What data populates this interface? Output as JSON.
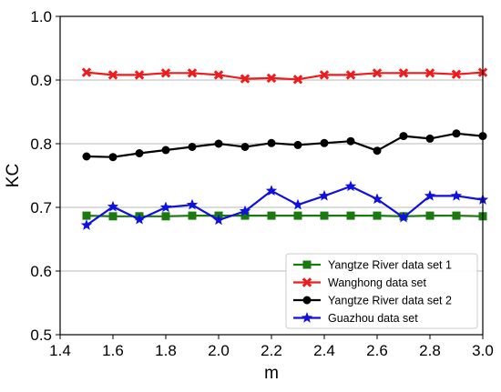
{
  "chart_data": {
    "type": "line",
    "xlabel": "m",
    "ylabel": "KC",
    "xlim": [
      1.4,
      3.0
    ],
    "ylim": [
      0.5,
      1.0
    ],
    "xticks": [
      "1.4",
      "1.6",
      "1.8",
      "2.0",
      "2.2",
      "2.4",
      "2.6",
      "2.8",
      "3.0"
    ],
    "yticks": [
      "0.5",
      "0.6",
      "0.7",
      "0.8",
      "0.9",
      "1.0"
    ],
    "grid": "horizontal",
    "legend_position": "bottom-right",
    "x": [
      1.5,
      1.6,
      1.7,
      1.8,
      1.9,
      2.0,
      2.1,
      2.2,
      2.3,
      2.4,
      2.5,
      2.6,
      2.7,
      2.8,
      2.9,
      3.0
    ],
    "series": [
      {
        "name": "Yangtze River data set 1",
        "color": "#1a7a10",
        "marker": "square",
        "values": [
          0.687,
          0.686,
          0.686,
          0.686,
          0.687,
          0.687,
          0.687,
          0.687,
          0.687,
          0.687,
          0.687,
          0.687,
          0.686,
          0.687,
          0.687,
          0.686
        ]
      },
      {
        "name": " Wanghong data set",
        "color": "#ee1c1c",
        "marker": "x",
        "values": [
          0.912,
          0.908,
          0.908,
          0.911,
          0.911,
          0.908,
          0.902,
          0.903,
          0.901,
          0.908,
          0.908,
          0.911,
          0.911,
          0.911,
          0.909,
          0.912
        ]
      },
      {
        "name": "Yangtze River data set 2",
        "color": "#000000",
        "marker": "circle",
        "values": [
          0.78,
          0.779,
          0.785,
          0.79,
          0.795,
          0.8,
          0.795,
          0.801,
          0.798,
          0.801,
          0.804,
          0.789,
          0.812,
          0.808,
          0.816,
          0.812
        ]
      },
      {
        "name": "Guazhou data set",
        "color": "#1010e0",
        "marker": "star",
        "values": [
          0.672,
          0.701,
          0.681,
          0.7,
          0.704,
          0.68,
          0.694,
          0.726,
          0.704,
          0.718,
          0.733,
          0.713,
          0.684,
          0.718,
          0.718,
          0.712
        ]
      }
    ]
  }
}
